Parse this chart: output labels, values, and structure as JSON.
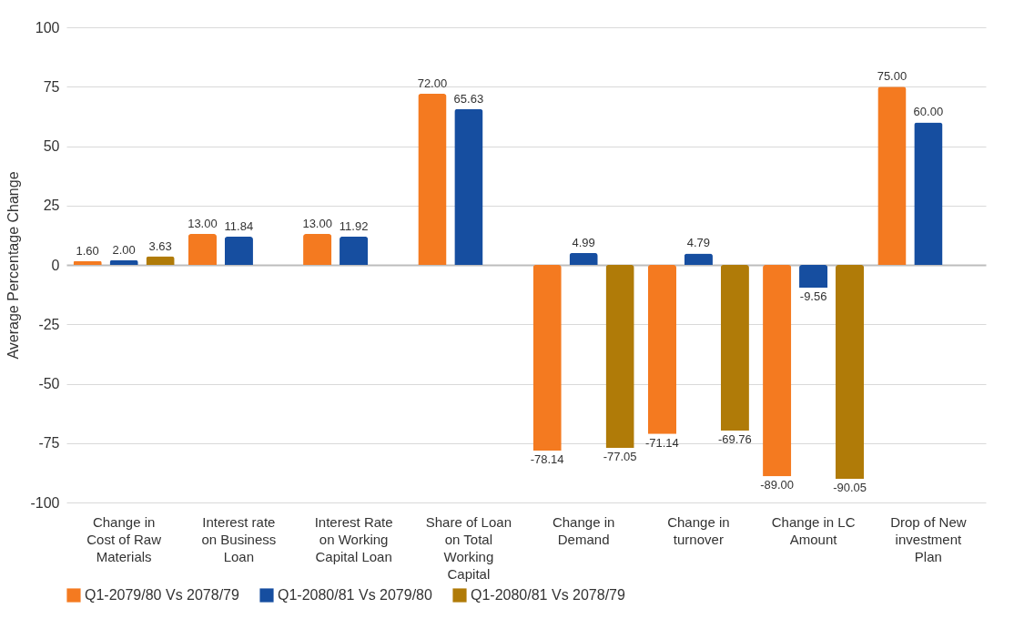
{
  "chart_data": {
    "type": "bar",
    "ylabel": "Average Percentage Change",
    "categories": [
      "Change in Cost of Raw Materials",
      "Interest rate on Business Loan",
      "Interest Rate on Working Capital Loan",
      "Share of Loan on Total Working Capital",
      "Change in Demand",
      "Change in turnover",
      "Change in LC Amount",
      "Drop of New investment Plan"
    ],
    "series": [
      {
        "name": "Q1-2079/80 Vs 2078/79",
        "color": "#f47a20",
        "values": [
          1.6,
          13,
          13,
          72,
          -78.14,
          -71.14,
          -89,
          75
        ],
        "value_labels": [
          "1.60",
          "13.00",
          "13.00",
          "72.00",
          "-78.14",
          "-71.14",
          "-89.00",
          "75.00"
        ]
      },
      {
        "name": "Q1-2080/81 Vs 2079/80",
        "color": "#164ea0",
        "values": [
          2,
          11.84,
          11.92,
          65.63,
          4.99,
          4.79,
          -9.56,
          60
        ],
        "value_labels": [
          "2.00",
          "11.84",
          "11.92",
          "65.63",
          "4.99",
          "4.79",
          "-9.56",
          "60.00"
        ]
      },
      {
        "name": "Q1-2080/81 Vs 2078/79",
        "color": "#b07b08",
        "values": [
          3.63,
          null,
          null,
          null,
          -77.05,
          -69.76,
          -90.05,
          null
        ],
        "value_labels": [
          "3.63",
          null,
          null,
          null,
          "-77.05",
          "-69.76",
          "-90.05",
          null
        ]
      }
    ],
    "ylim": [
      -100,
      100
    ],
    "yticks": [
      -100,
      -75,
      -50,
      -25,
      0,
      25,
      50,
      75,
      100
    ],
    "grid": "y",
    "legend": "bottom left"
  }
}
